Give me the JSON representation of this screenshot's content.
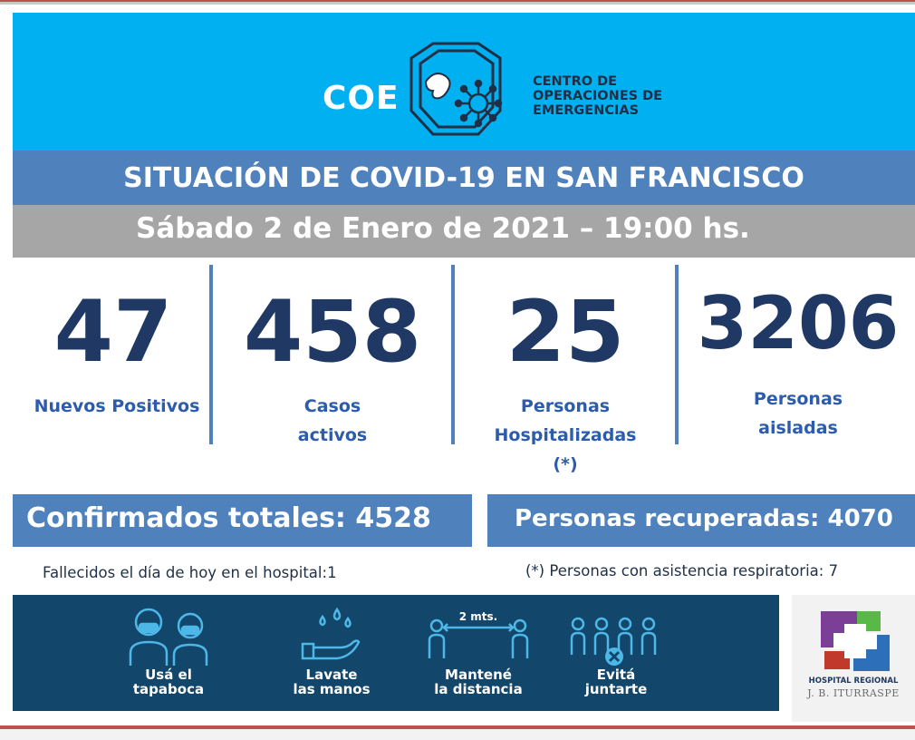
{
  "header": {
    "logo_short": "COE",
    "logo_lines": [
      "CENTRO DE",
      "OPERACIONES DE",
      "EMERGENCIAS"
    ]
  },
  "title": "SITUACIÓN DE COVID-19 EN SAN FRANCISCO",
  "date": "Sábado 2 de Enero de 2021 – 19:00 hs.",
  "stats": [
    {
      "value": "47",
      "label": "Nuevos Positivos"
    },
    {
      "value": "458",
      "label": "Casos\nactivos"
    },
    {
      "value": "25",
      "label": "Personas\nHospitalizadas\n(*)"
    },
    {
      "value": "3206",
      "label": "Personas\naisladas"
    }
  ],
  "confirmados": "Confirmados totales: 4528",
  "recuperadas": "Personas recuperadas: 4070",
  "notes": {
    "fallecidos": "Fallecidos el día de hoy en el hospital:1",
    "asistencia": "(*) Personas con asistencia respiratoria: 7"
  },
  "tips": [
    {
      "icon": "mask-people-icon",
      "label": "Usá el\ntapaboca"
    },
    {
      "icon": "handwash-icon",
      "label": "Lavate\nlas manos",
      "extra": ""
    },
    {
      "icon": "distance-icon",
      "label": "Mantené\nla distancia",
      "extra": "2 mts."
    },
    {
      "icon": "no-groups-icon",
      "label": "Evitá\njuntarte"
    }
  ],
  "hospital": {
    "name": "HOSPITAL REGIONAL",
    "sub": "J. B. ITURRASPE"
  },
  "colors": {
    "header_blue": "#00b0f0",
    "bar_blue": "#4f81bd",
    "date_gray": "#a6a6a6",
    "number_navy": "#1f3864",
    "label_blue": "#2e5cac",
    "banner_navy": "#12476b",
    "accent_red": "#c0504d"
  }
}
